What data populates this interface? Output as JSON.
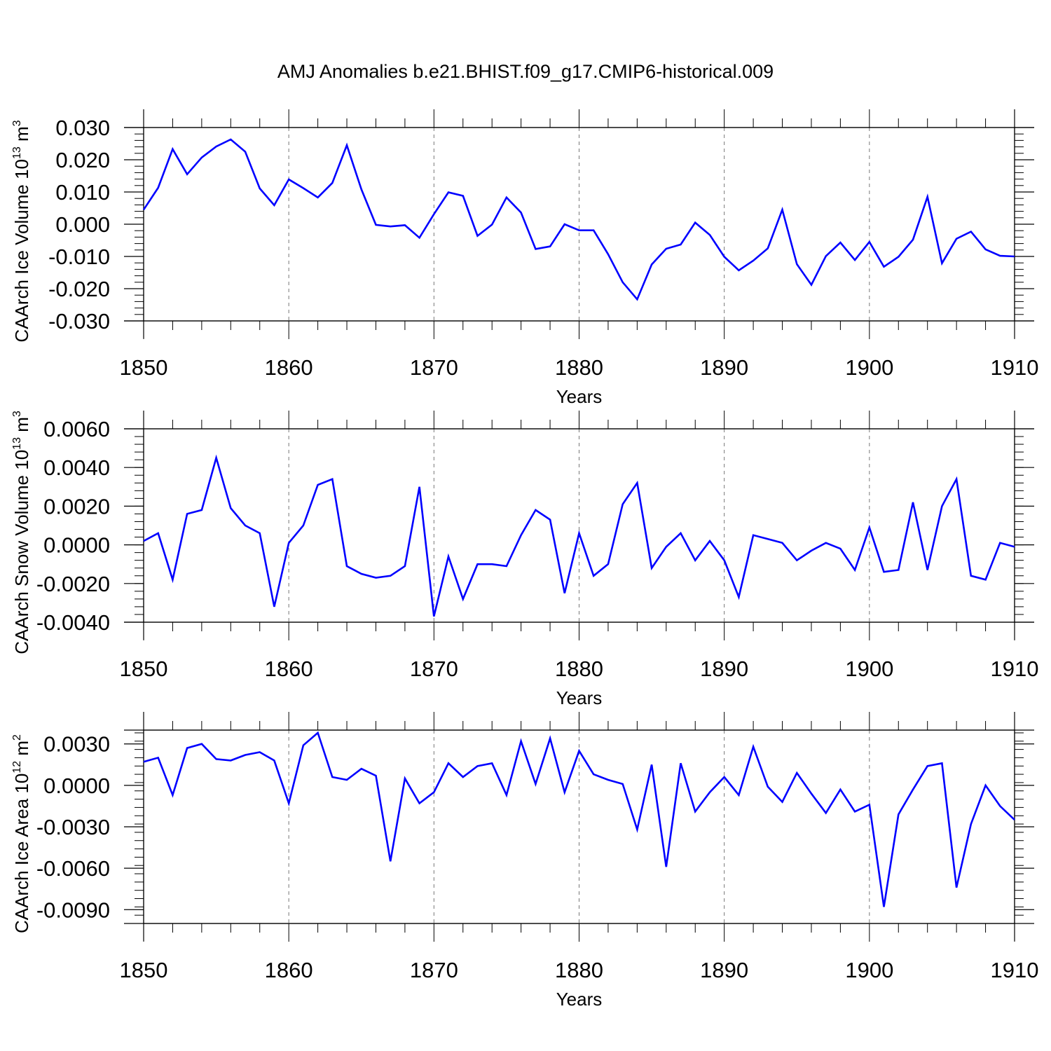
{
  "title": "AMJ Anomalies b.e21.BHIST.f09_g17.CMIP6-historical.009",
  "line_color": "#0000ff",
  "chart_data": [
    {
      "type": "line",
      "ylabel_text": "CAArch Ice Volume 10",
      "ylabel_exp": "13",
      "ylabel_unit": " m",
      "ylabel_unit_exp": "3",
      "xlabel": "Years",
      "xlim": [
        1850,
        1910
      ],
      "ylim": [
        -0.03,
        0.03
      ],
      "yticks": [
        "0.030",
        "0.020",
        "0.010",
        "0.000",
        "-0.010",
        "-0.020",
        "-0.030"
      ],
      "ytick_values": [
        0.03,
        0.02,
        0.01,
        0.0,
        -0.01,
        -0.02,
        -0.03
      ],
      "xticks": [
        "1850",
        "1860",
        "1870",
        "1880",
        "1890",
        "1900",
        "1910"
      ],
      "x": [
        1850,
        1851,
        1852,
        1853,
        1854,
        1855,
        1856,
        1857,
        1858,
        1859,
        1860,
        1861,
        1862,
        1863,
        1864,
        1865,
        1866,
        1867,
        1868,
        1869,
        1870,
        1871,
        1872,
        1873,
        1874,
        1875,
        1876,
        1877,
        1878,
        1879,
        1880,
        1881,
        1882,
        1883,
        1884,
        1885,
        1886,
        1887,
        1888,
        1889,
        1890,
        1891,
        1892,
        1893,
        1894,
        1895,
        1896,
        1897,
        1898,
        1899,
        1900,
        1901,
        1902,
        1903,
        1904,
        1905,
        1906,
        1907,
        1908,
        1909,
        1910
      ],
      "series": [
        {
          "values": [
            0.0045,
            0.0113,
            0.0233,
            0.0155,
            0.0207,
            0.0241,
            0.0263,
            0.0225,
            0.0111,
            0.0059,
            0.0139,
            0.0112,
            0.0083,
            0.0128,
            0.0245,
            0.0108,
            -0.0002,
            -0.0007,
            -0.0003,
            -0.0042,
            0.0031,
            0.0099,
            0.0088,
            -0.0036,
            -0.0001,
            0.0083,
            0.0036,
            -0.0077,
            -0.0069,
            0.0,
            -0.0019,
            -0.0019,
            -0.0093,
            -0.018,
            -0.0233,
            -0.0125,
            -0.0076,
            -0.0063,
            0.0005,
            -0.0033,
            -0.0101,
            -0.0143,
            -0.0113,
            -0.0075,
            0.0045,
            -0.0124,
            -0.0188,
            -0.0099,
            -0.0057,
            -0.0111,
            -0.0055,
            -0.0132,
            -0.0101,
            -0.0048,
            0.0085,
            -0.0121,
            -0.0045,
            -0.0023,
            -0.0078,
            -0.0098,
            -0.01
          ]
        }
      ]
    },
    {
      "type": "line",
      "ylabel_text": "CAArch Snow Volume 10",
      "ylabel_exp": "13",
      "ylabel_unit": " m",
      "ylabel_unit_exp": "3",
      "xlabel": "Years",
      "xlim": [
        1850,
        1910
      ],
      "ylim": [
        -0.004,
        0.006
      ],
      "yticks": [
        "0.0060",
        "0.0040",
        "0.0020",
        "0.0000",
        "-0.0020",
        "-0.0040"
      ],
      "ytick_values": [
        0.006,
        0.004,
        0.002,
        0.0,
        -0.002,
        -0.004
      ],
      "xticks": [
        "1850",
        "1860",
        "1870",
        "1880",
        "1890",
        "1900",
        "1910"
      ],
      "x": [
        1850,
        1851,
        1852,
        1853,
        1854,
        1855,
        1856,
        1857,
        1858,
        1859,
        1860,
        1861,
        1862,
        1863,
        1864,
        1865,
        1866,
        1867,
        1868,
        1869,
        1870,
        1871,
        1872,
        1873,
        1874,
        1875,
        1876,
        1877,
        1878,
        1879,
        1880,
        1881,
        1882,
        1883,
        1884,
        1885,
        1886,
        1887,
        1888,
        1889,
        1890,
        1891,
        1892,
        1893,
        1894,
        1895,
        1896,
        1897,
        1898,
        1899,
        1900,
        1901,
        1902,
        1903,
        1904,
        1905,
        1906,
        1907,
        1908,
        1909,
        1910
      ],
      "series": [
        {
          "values": [
            0.0002,
            0.0006,
            -0.0018,
            0.0016,
            0.0018,
            0.0045,
            0.0019,
            0.001,
            0.0006,
            -0.0032,
            0.0001,
            0.001,
            0.0031,
            0.0034,
            -0.0011,
            -0.0015,
            -0.0017,
            -0.0016,
            -0.0011,
            0.003,
            -0.0037,
            -0.0006,
            -0.0028,
            -0.001,
            -0.001,
            -0.0011,
            0.0005,
            0.0018,
            0.0013,
            -0.0025,
            0.0006,
            -0.0016,
            -0.001,
            0.0021,
            0.0032,
            -0.0012,
            -0.0001,
            0.0006,
            -0.0008,
            0.0002,
            -0.0008,
            -0.0027,
            0.0005,
            0.0003,
            0.0001,
            -0.0008,
            -0.0003,
            0.0001,
            -0.0002,
            -0.0013,
            0.0009,
            -0.0014,
            -0.0013,
            0.0022,
            -0.0013,
            0.002,
            0.0034,
            -0.0016,
            -0.0018,
            0.0001,
            -0.0001
          ]
        }
      ]
    },
    {
      "type": "line",
      "ylabel_text": "CAArch Ice Area 10",
      "ylabel_exp": "12",
      "ylabel_unit": " m",
      "ylabel_unit_exp": "2",
      "xlabel": "Years",
      "xlim": [
        1850,
        1910
      ],
      "ylim": [
        -0.01,
        0.004
      ],
      "yticks": [
        "0.0030",
        "0.0000",
        "-0.0030",
        "-0.0060",
        "-0.0090"
      ],
      "ytick_values": [
        0.003,
        0.0,
        -0.003,
        -0.006,
        -0.009
      ],
      "xticks": [
        "1850",
        "1860",
        "1870",
        "1880",
        "1890",
        "1900",
        "1910"
      ],
      "x": [
        1850,
        1851,
        1852,
        1853,
        1854,
        1855,
        1856,
        1857,
        1858,
        1859,
        1860,
        1861,
        1862,
        1863,
        1864,
        1865,
        1866,
        1867,
        1868,
        1869,
        1870,
        1871,
        1872,
        1873,
        1874,
        1875,
        1876,
        1877,
        1878,
        1879,
        1880,
        1881,
        1882,
        1883,
        1884,
        1885,
        1886,
        1887,
        1888,
        1889,
        1890,
        1891,
        1892,
        1893,
        1894,
        1895,
        1896,
        1897,
        1898,
        1899,
        1900,
        1901,
        1902,
        1903,
        1904,
        1905,
        1906,
        1907,
        1908,
        1909,
        1910
      ],
      "series": [
        {
          "values": [
            0.0017,
            0.002,
            -0.0007,
            0.0027,
            0.003,
            0.0019,
            0.0018,
            0.0022,
            0.0024,
            0.0018,
            -0.0013,
            0.0029,
            0.0038,
            0.0006,
            0.0004,
            0.0012,
            0.0007,
            -0.0055,
            0.0005,
            -0.0013,
            -0.0005,
            0.0016,
            0.0006,
            0.0014,
            0.0016,
            -0.0007,
            0.0032,
            0.0001,
            0.0034,
            -0.0005,
            0.0025,
            0.0008,
            0.0004,
            0.0001,
            -0.0032,
            0.0015,
            -0.0059,
            0.0016,
            -0.0019,
            -0.0005,
            0.0006,
            -0.0007,
            0.0028,
            -0.0001,
            -0.0012,
            0.0009,
            -0.0006,
            -0.002,
            -0.0003,
            -0.0019,
            -0.0014,
            -0.0088,
            -0.0021,
            -0.0003,
            0.0014,
            0.0016,
            -0.0074,
            -0.0028,
            0.0,
            -0.0015,
            -0.0025
          ]
        }
      ]
    }
  ]
}
